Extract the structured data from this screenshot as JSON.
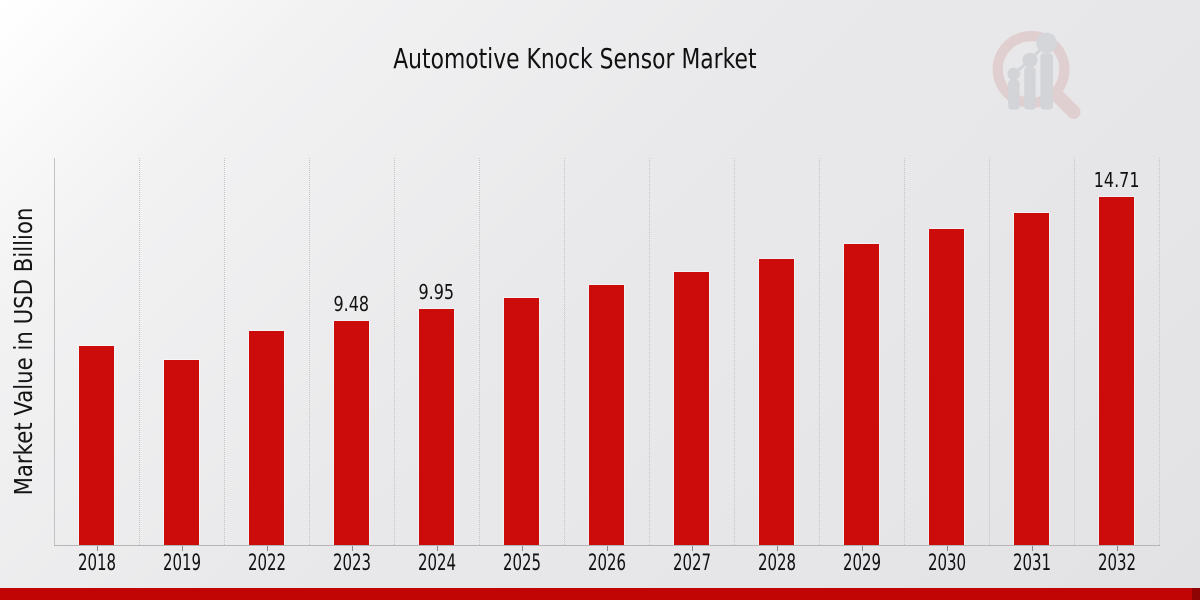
{
  "chart_data": {
    "type": "bar",
    "title": "Automotive Knock Sensor Market",
    "ylabel": "Market Value in USD Billion",
    "xlabel": "",
    "categories": [
      "2018",
      "2019",
      "2022",
      "2023",
      "2024",
      "2025",
      "2026",
      "2027",
      "2028",
      "2029",
      "2030",
      "2031",
      "2032"
    ],
    "values": [
      8.42,
      7.81,
      9.02,
      9.48,
      9.95,
      10.45,
      10.97,
      11.52,
      12.1,
      12.7,
      13.34,
      14.01,
      14.71
    ],
    "data_labels": [
      "",
      "",
      "",
      "9.48",
      "9.95",
      "",
      "",
      "",
      "",
      "",
      "",
      "",
      "14.71"
    ],
    "ylim": [
      0,
      16.35
    ],
    "grid": "vertical-dotted",
    "legend": "none",
    "bar_color": "#cc0b0b"
  },
  "branding": {
    "logo_icon": "magnifier-bar-chart-logo",
    "banner_color": "#c10404",
    "banner_dark_color": "#8e0303"
  },
  "colors": {
    "bar": "#cc0b0b",
    "grid": "#c5c5c5",
    "axis": "#b5b5b5",
    "text": "#111111",
    "background_light": "#ffffff",
    "background_dark": "#e2e2e4"
  }
}
